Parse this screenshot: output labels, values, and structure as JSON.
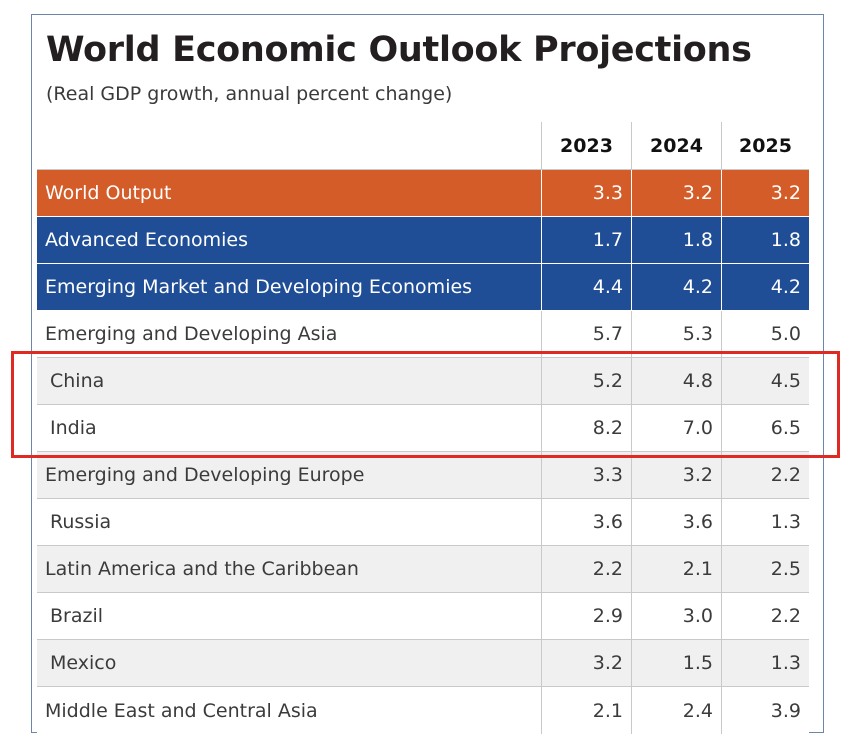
{
  "title": "World Economic Outlook Projections",
  "subtitle": "(Real GDP growth, annual percent change)",
  "columns": [
    "2023",
    "2024",
    "2025"
  ],
  "rows": [
    {
      "label": "World Output",
      "values": [
        "3.3",
        "3.2",
        "3.2"
      ]
    },
    {
      "label": "Advanced Economies",
      "values": [
        "1.7",
        "1.8",
        "1.8"
      ]
    },
    {
      "label": "Emerging Market and Developing Economies",
      "values": [
        "4.4",
        "4.2",
        "4.2"
      ]
    },
    {
      "label": "Emerging and Developing Asia",
      "values": [
        "5.7",
        "5.3",
        "5.0"
      ]
    },
    {
      "label": "China",
      "values": [
        "5.2",
        "4.8",
        "4.5"
      ]
    },
    {
      "label": "India",
      "values": [
        "8.2",
        "7.0",
        "6.5"
      ]
    },
    {
      "label": "Emerging and Developing Europe",
      "values": [
        "3.3",
        "3.2",
        "2.2"
      ]
    },
    {
      "label": "Russia",
      "values": [
        "3.6",
        "3.6",
        "1.3"
      ]
    },
    {
      "label": "Latin America and the Caribbean",
      "values": [
        "2.2",
        "2.1",
        "2.5"
      ]
    },
    {
      "label": "Brazil",
      "values": [
        "2.9",
        "3.0",
        "2.2"
      ]
    },
    {
      "label": "Mexico",
      "values": [
        "3.2",
        "1.5",
        "1.3"
      ]
    },
    {
      "label": "Middle East and Central Asia",
      "values": [
        "2.1",
        "2.4",
        "3.9"
      ]
    }
  ],
  "colors": {
    "world_row": "#d45c28",
    "region_row": "#1f4e96",
    "highlight_box": "#de2a22",
    "shaded_row": "#f0f0f0"
  }
}
